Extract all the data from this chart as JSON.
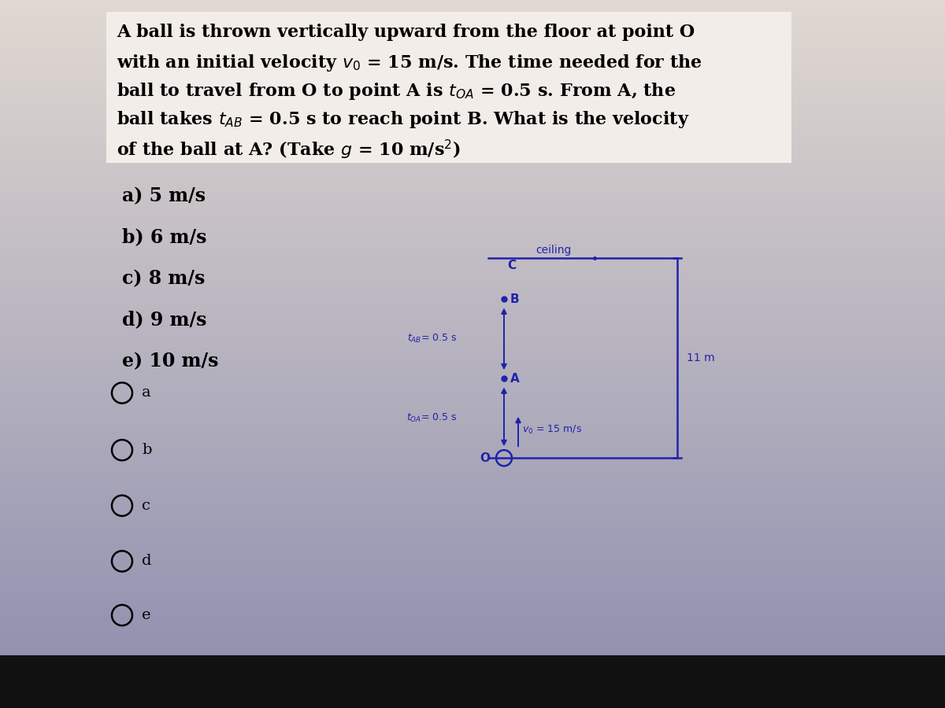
{
  "bg_top_color": "#8888aa",
  "bg_bottom_color": "#d8d0c8",
  "question_box_color": "#f5f0ec",
  "question_lines": [
    "A ball is thrown vertically upward from the floor at point O",
    "with an initial velocity $v_0$ = 15 m/s. The time needed for the",
    "ball to travel from O to point A is $t_{OA}$ = 0.5 s. From A, the",
    "ball takes $t_{AB}$ = 0.5 s to reach point B. What is the velocity",
    "of the ball at A? (Take $g$ = 10 m/s$^2$)"
  ],
  "options": [
    "a) 5 m/s",
    "b) 6 m/s",
    "c) 8 m/s",
    "d) 9 m/s",
    "e) 10 m/s"
  ],
  "radio_labels": [
    "a",
    "b",
    "c",
    "d",
    "e"
  ],
  "diagram_color": "#2222aa",
  "taskbar_color": "#111111"
}
